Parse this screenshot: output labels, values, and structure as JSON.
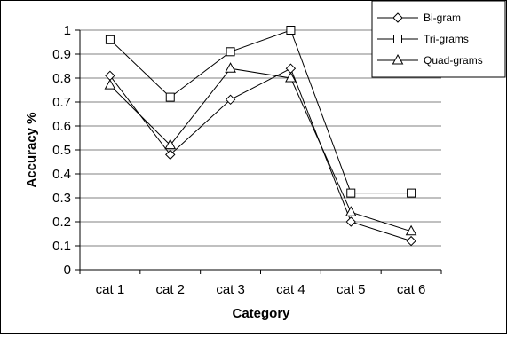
{
  "chart_data": {
    "type": "line",
    "xlabel": "Category",
    "ylabel": "Accuracy %",
    "categories": [
      "cat 1",
      "cat 2",
      "cat 3",
      "cat 4",
      "cat 5",
      "cat 6"
    ],
    "ylim": [
      0,
      1
    ],
    "yticks": [
      "0",
      "0.1",
      "0.2",
      "0.3",
      "0.4",
      "0.5",
      "0.6",
      "0.7",
      "0.8",
      "0.9",
      "1"
    ],
    "grid": true,
    "legend_position": "top-right",
    "series": [
      {
        "name": "Bi-gram",
        "marker": "diamond",
        "values": [
          0.81,
          0.48,
          0.71,
          0.84,
          0.2,
          0.12
        ]
      },
      {
        "name": "Tri-grams",
        "marker": "square",
        "values": [
          0.96,
          0.72,
          0.91,
          1.0,
          0.32,
          0.32
        ]
      },
      {
        "name": "Quad-grams",
        "marker": "triangle",
        "values": [
          0.77,
          0.52,
          0.84,
          0.8,
          0.24,
          0.16
        ]
      }
    ]
  }
}
